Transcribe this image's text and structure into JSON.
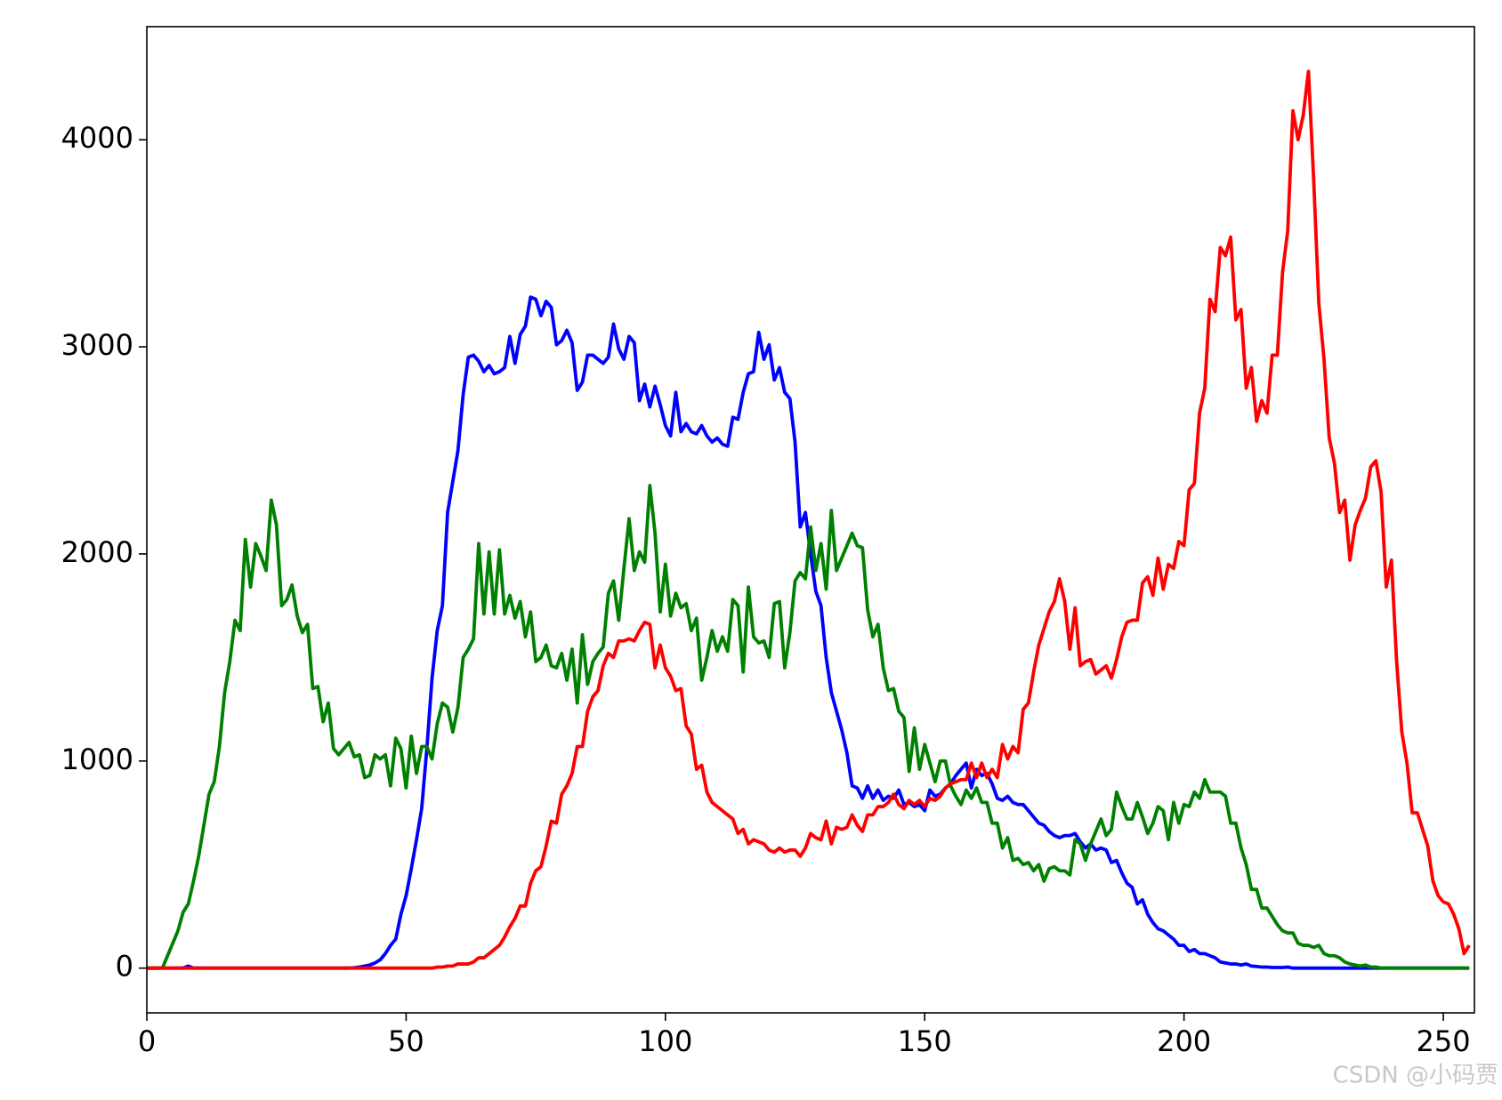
{
  "chart_data": {
    "type": "line",
    "x": [
      0,
      1,
      2,
      3,
      4,
      5,
      6,
      7,
      8,
      9,
      10,
      11,
      12,
      13,
      14,
      15,
      16,
      17,
      18,
      19,
      20,
      21,
      22,
      23,
      24,
      25,
      26,
      27,
      28,
      29,
      30,
      31,
      32,
      33,
      34,
      35,
      36,
      37,
      38,
      39,
      40,
      41,
      42,
      43,
      44,
      45,
      46,
      47,
      48,
      49,
      50,
      51,
      52,
      53,
      54,
      55,
      56,
      57,
      58,
      59,
      60,
      61,
      62,
      63,
      64,
      65,
      66,
      67,
      68,
      69,
      70,
      71,
      72,
      73,
      74,
      75,
      76,
      77,
      78,
      79,
      80,
      81,
      82,
      83,
      84,
      85,
      86,
      87,
      88,
      89,
      90,
      91,
      92,
      93,
      94,
      95,
      96,
      97,
      98,
      99,
      100,
      101,
      102,
      103,
      104,
      105,
      106,
      107,
      108,
      109,
      110,
      111,
      112,
      113,
      114,
      115,
      116,
      117,
      118,
      119,
      120,
      121,
      122,
      123,
      124,
      125,
      126,
      127,
      128,
      129,
      130,
      131,
      132,
      133,
      134,
      135,
      136,
      137,
      138,
      139,
      140,
      141,
      142,
      143,
      144,
      145,
      146,
      147,
      148,
      149,
      150,
      151,
      152,
      153,
      154,
      155,
      156,
      157,
      158,
      159,
      160,
      161,
      162,
      163,
      164,
      165,
      166,
      167,
      168,
      169,
      170,
      171,
      172,
      173,
      174,
      175,
      176,
      177,
      178,
      179,
      180,
      181,
      182,
      183,
      184,
      185,
      186,
      187,
      188,
      189,
      190,
      191,
      192,
      193,
      194,
      195,
      196,
      197,
      198,
      199,
      200,
      201,
      202,
      203,
      204,
      205,
      206,
      207,
      208,
      209,
      210,
      211,
      212,
      213,
      214,
      215,
      216,
      217,
      218,
      219,
      220,
      221,
      222,
      223,
      224,
      225,
      226,
      227,
      228,
      229,
      230,
      231,
      232,
      233,
      234,
      235,
      236,
      237,
      238,
      239,
      240,
      241,
      242,
      243,
      244,
      245,
      246,
      247,
      248,
      249,
      250,
      251,
      252,
      253,
      254,
      255
    ],
    "series": [
      {
        "color": "#0000ff",
        "values": [
          0,
          0,
          0,
          0,
          0,
          0,
          0,
          0,
          10,
          0,
          0,
          0,
          0,
          0,
          0,
          0,
          0,
          0,
          0,
          0,
          0,
          0,
          0,
          0,
          0,
          0,
          0,
          0,
          0,
          0,
          0,
          0,
          0,
          0,
          0,
          0,
          0,
          0,
          0,
          0,
          2,
          5,
          10,
          15,
          25,
          40,
          70,
          110,
          140,
          260,
          350,
          480,
          620,
          770,
          1060,
          1400,
          1630,
          1750,
          2200,
          2350,
          2500,
          2770,
          2950,
          2960,
          2930,
          2880,
          2910,
          2870,
          2880,
          2900,
          3050,
          2920,
          3060,
          3100,
          3240,
          3230,
          3150,
          3220,
          3190,
          3010,
          3030,
          3080,
          3020,
          2790,
          2830,
          2960,
          2960,
          2940,
          2920,
          2950,
          3110,
          2990,
          2940,
          3050,
          3020,
          2740,
          2820,
          2710,
          2810,
          2720,
          2620,
          2570,
          2780,
          2590,
          2630,
          2590,
          2580,
          2620,
          2570,
          2540,
          2560,
          2530,
          2520,
          2660,
          2650,
          2780,
          2870,
          2880,
          3070,
          2940,
          3010,
          2840,
          2900,
          2780,
          2750,
          2540,
          2130,
          2200,
          2000,
          1820,
          1750,
          1500,
          1330,
          1240,
          1150,
          1040,
          880,
          870,
          820,
          880,
          820,
          860,
          810,
          830,
          820,
          860,
          790,
          800,
          780,
          790,
          760,
          860,
          830,
          840,
          870,
          890,
          930,
          960,
          990,
          870,
          960,
          930,
          940,
          890,
          820,
          810,
          830,
          800,
          790,
          790,
          760,
          730,
          700,
          690,
          660,
          640,
          630,
          640,
          640,
          650,
          610,
          580,
          600,
          570,
          580,
          570,
          510,
          520,
          460,
          410,
          390,
          310,
          330,
          260,
          220,
          190,
          180,
          160,
          140,
          110,
          110,
          80,
          90,
          70,
          70,
          60,
          50,
          30,
          25,
          20,
          20,
          15,
          20,
          10,
          8,
          5,
          5,
          3,
          3,
          3,
          5,
          0,
          0,
          0,
          0,
          0,
          0,
          0,
          0,
          0,
          0,
          0,
          0,
          0,
          0,
          0,
          0,
          0,
          0,
          0,
          0,
          0,
          0,
          0,
          0,
          0,
          0,
          0,
          0,
          0,
          0,
          0,
          0,
          0,
          0,
          0
        ]
      },
      {
        "color": "#008000",
        "values": [
          0,
          0,
          0,
          0,
          60,
          120,
          180,
          270,
          310,
          420,
          540,
          690,
          840,
          900,
          1070,
          1330,
          1480,
          1680,
          1630,
          2070,
          1840,
          2050,
          1990,
          1920,
          2260,
          2140,
          1750,
          1780,
          1850,
          1700,
          1620,
          1660,
          1350,
          1360,
          1190,
          1280,
          1060,
          1030,
          1060,
          1090,
          1020,
          1030,
          920,
          930,
          1030,
          1010,
          1030,
          880,
          1110,
          1060,
          870,
          1120,
          940,
          1070,
          1070,
          1010,
          1180,
          1280,
          1260,
          1140,
          1260,
          1500,
          1540,
          1590,
          2050,
          1710,
          2010,
          1710,
          2020,
          1710,
          1800,
          1690,
          1770,
          1600,
          1720,
          1480,
          1500,
          1560,
          1460,
          1450,
          1520,
          1390,
          1540,
          1280,
          1610,
          1370,
          1480,
          1520,
          1550,
          1810,
          1870,
          1680,
          1930,
          2170,
          1920,
          2010,
          1960,
          2330,
          2100,
          1720,
          1950,
          1700,
          1810,
          1740,
          1760,
          1630,
          1690,
          1390,
          1500,
          1630,
          1530,
          1600,
          1530,
          1780,
          1750,
          1430,
          1840,
          1600,
          1570,
          1580,
          1500,
          1760,
          1770,
          1450,
          1620,
          1870,
          1910,
          1880,
          2130,
          1920,
          2050,
          1830,
          2210,
          1920,
          1980,
          2040,
          2100,
          2040,
          2030,
          1730,
          1600,
          1660,
          1450,
          1340,
          1350,
          1240,
          1210,
          950,
          1160,
          960,
          1080,
          990,
          900,
          1000,
          1000,
          880,
          830,
          790,
          860,
          820,
          870,
          800,
          800,
          700,
          700,
          580,
          630,
          520,
          530,
          500,
          510,
          470,
          500,
          420,
          480,
          490,
          470,
          470,
          450,
          620,
          600,
          520,
          600,
          660,
          720,
          640,
          670,
          850,
          780,
          720,
          720,
          800,
          730,
          650,
          700,
          780,
          760,
          620,
          800,
          700,
          790,
          780,
          850,
          820,
          910,
          850,
          850,
          850,
          830,
          700,
          700,
          580,
          500,
          380,
          380,
          290,
          290,
          250,
          210,
          180,
          170,
          170,
          120,
          110,
          110,
          100,
          110,
          70,
          60,
          60,
          50,
          30,
          20,
          15,
          10,
          15,
          5,
          5,
          0,
          0,
          0,
          0,
          0,
          0,
          0,
          0,
          0,
          0,
          0,
          0,
          0,
          0,
          0,
          0,
          0,
          0
        ]
      },
      {
        "color": "#ff0000",
        "values": [
          0,
          0,
          0,
          0,
          0,
          0,
          0,
          0,
          0,
          0,
          0,
          0,
          0,
          0,
          0,
          0,
          0,
          0,
          0,
          0,
          0,
          0,
          0,
          0,
          0,
          0,
          0,
          0,
          0,
          0,
          0,
          0,
          0,
          0,
          0,
          0,
          0,
          0,
          0,
          0,
          0,
          0,
          0,
          0,
          0,
          0,
          0,
          0,
          0,
          0,
          0,
          0,
          0,
          0,
          0,
          0,
          5,
          5,
          10,
          10,
          20,
          20,
          20,
          30,
          50,
          50,
          70,
          90,
          110,
          150,
          200,
          240,
          300,
          300,
          410,
          470,
          490,
          590,
          710,
          700,
          840,
          880,
          940,
          1070,
          1070,
          1240,
          1310,
          1340,
          1460,
          1520,
          1500,
          1580,
          1580,
          1590,
          1580,
          1630,
          1670,
          1660,
          1450,
          1560,
          1450,
          1410,
          1340,
          1350,
          1170,
          1130,
          960,
          980,
          850,
          800,
          780,
          760,
          740,
          720,
          650,
          670,
          600,
          620,
          610,
          600,
          570,
          560,
          580,
          560,
          570,
          570,
          540,
          580,
          650,
          630,
          620,
          710,
          600,
          680,
          670,
          680,
          740,
          690,
          660,
          740,
          740,
          780,
          780,
          800,
          840,
          790,
          770,
          810,
          790,
          810,
          780,
          820,
          810,
          830,
          870,
          890,
          900,
          910,
          910,
          990,
          920,
          990,
          920,
          960,
          920,
          1080,
          1010,
          1070,
          1040,
          1250,
          1280,
          1430,
          1560,
          1640,
          1720,
          1770,
          1880,
          1770,
          1540,
          1740,
          1460,
          1480,
          1490,
          1420,
          1440,
          1460,
          1400,
          1490,
          1600,
          1670,
          1680,
          1680,
          1860,
          1890,
          1800,
          1980,
          1830,
          1950,
          1930,
          2060,
          2040,
          2310,
          2340,
          2680,
          2800,
          3230,
          3170,
          3480,
          3440,
          3530,
          3130,
          3180,
          2800,
          2900,
          2640,
          2740,
          2680,
          2960,
          2960,
          3360,
          3560,
          4140,
          4000,
          4120,
          4330,
          3810,
          3210,
          2940,
          2560,
          2440,
          2200,
          2260,
          1970,
          2140,
          2210,
          2270,
          2420,
          2450,
          2300,
          1840,
          1970,
          1480,
          1140,
          990,
          750,
          750,
          670,
          590,
          420,
          350,
          320,
          310,
          260,
          190,
          70,
          110
        ]
      }
    ],
    "xlim": [
      0,
      256
    ],
    "ylim": [
      -216,
      4546
    ],
    "xticks": [
      0,
      50,
      100,
      150,
      200,
      250
    ],
    "yticks": [
      0,
      1000,
      2000,
      3000,
      4000
    ],
    "grid": false
  },
  "watermark": "CSDN @小码贾"
}
